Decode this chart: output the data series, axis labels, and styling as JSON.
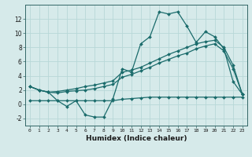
{
  "xlabel": "Humidex (Indice chaleur)",
  "bg_color": "#d6eaea",
  "grid_color": "#b8d8d8",
  "line_color": "#1a6b6b",
  "xlim": [
    -0.5,
    23.5
  ],
  "ylim": [
    -3,
    14
  ],
  "xticks": [
    0,
    1,
    2,
    3,
    4,
    5,
    6,
    7,
    8,
    9,
    10,
    11,
    12,
    13,
    14,
    15,
    16,
    17,
    18,
    19,
    20,
    21,
    22,
    23
  ],
  "yticks": [
    -2,
    0,
    2,
    4,
    6,
    8,
    10,
    12
  ],
  "series": {
    "line1": [
      2.5,
      2.0,
      1.7,
      0.5,
      -0.3,
      0.5,
      -1.5,
      -1.8,
      -1.8,
      0.8,
      5.0,
      4.5,
      8.5,
      9.5,
      13.0,
      12.7,
      13.0,
      11.0,
      8.7,
      10.2,
      9.5,
      7.8,
      3.2,
      1.4
    ],
    "line2": [
      2.5,
      2.0,
      1.7,
      1.8,
      2.0,
      2.2,
      2.5,
      2.7,
      3.0,
      3.3,
      4.5,
      4.8,
      5.2,
      5.8,
      6.4,
      7.0,
      7.5,
      8.0,
      8.5,
      8.8,
      9.0,
      8.0,
      5.5,
      1.4
    ],
    "line3": [
      2.5,
      2.0,
      1.7,
      1.6,
      1.8,
      1.9,
      2.0,
      2.2,
      2.5,
      2.8,
      3.8,
      4.2,
      4.7,
      5.2,
      5.8,
      6.3,
      6.8,
      7.2,
      7.8,
      8.2,
      8.5,
      7.5,
      5.0,
      1.4
    ],
    "line4": [
      0.5,
      0.5,
      0.5,
      0.5,
      0.5,
      0.5,
      0.5,
      0.5,
      0.5,
      0.5,
      0.7,
      0.8,
      0.9,
      1.0,
      1.0,
      1.0,
      1.0,
      1.0,
      1.0,
      1.0,
      1.0,
      1.0,
      1.0,
      1.0
    ]
  }
}
